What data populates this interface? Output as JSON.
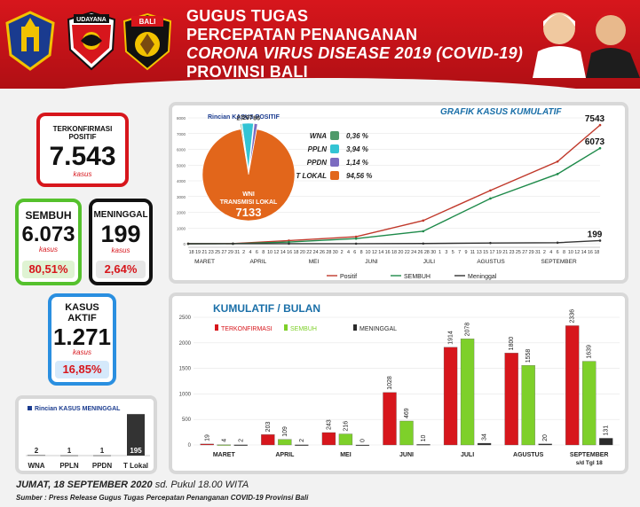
{
  "header": {
    "logo_label_2": "UDAYANA",
    "logo_label_3": "BALI",
    "line1": "GUGUS TUGAS",
    "line2": "PERCEPATAN PENANGANAN",
    "line3": "CORONA VIRUS DISEASE 2019 (COVID-19)",
    "line4": "PROVINSI BALI"
  },
  "cards": {
    "positive": {
      "label": "TERKONFIRMASI POSITIF",
      "value": "7.543",
      "unit": "kasus"
    },
    "recovered": {
      "label": "SEMBUH",
      "value": "6.073",
      "unit": "kasus",
      "percent": "80,51%"
    },
    "deaths": {
      "label": "MENINGGAL",
      "value": "199",
      "unit": "kasus",
      "percent": "2,64%"
    },
    "active": {
      "label": "KASUS AKTIF",
      "value": "1.271",
      "unit": "kasus",
      "percent": "16,85%"
    }
  },
  "colors": {
    "positive": "#d7161c",
    "recovered": "#4caf2a",
    "deaths": "#222222",
    "active": "#2a8fe0"
  },
  "chart_data": [
    {
      "type": "pie",
      "title": "Rincian KASUS POSITIF",
      "slices": [
        {
          "name": "WNA",
          "value": 27,
          "percent": "0,36 %",
          "color": "#4f9a6a"
        },
        {
          "name": "PPLN",
          "value": 297,
          "percent": "3,94 %",
          "color": "#33c4d4"
        },
        {
          "name": "PPDN",
          "value": 86,
          "percent": "1,14 %",
          "color": "#7b6bc0"
        },
        {
          "name": "T LOKAL",
          "value": 7133,
          "percent": "94,56 %",
          "color": "#e2661b"
        }
      ],
      "center_label_line1": "WNI",
      "center_label_line2": "TRANSMISI LOKAL",
      "center_value": "7133"
    },
    {
      "type": "line",
      "title": "GRAFIK KASUS KUMULATIF",
      "ylim": [
        0,
        8000
      ],
      "yticks": [
        "0",
        "1000",
        "2000",
        "3000",
        "4000",
        "5000",
        "6000",
        "7000",
        "8000"
      ],
      "month_labels": [
        "MARET",
        "APRIL",
        "MEI",
        "JUNI",
        "JULI",
        "AGUSTUS",
        "SEPTEMBER"
      ],
      "x_day_labels": [
        "18",
        "19",
        "21",
        "23",
        "25",
        "27",
        "29",
        "31",
        "2",
        "4",
        "6",
        "8",
        "10",
        "12",
        "14",
        "16",
        "18",
        "20",
        "22",
        "24",
        "26",
        "28",
        "30",
        "2",
        "4",
        "6",
        "8",
        "10",
        "12",
        "14",
        "16",
        "18",
        "20",
        "22",
        "24",
        "26",
        "28",
        "30",
        "1",
        "3",
        "5",
        "7",
        "9",
        "11",
        "13",
        "15",
        "17",
        "19",
        "21",
        "23",
        "25",
        "27",
        "29",
        "31",
        "2",
        "4",
        "6",
        "8",
        "10",
        "12",
        "14",
        "16",
        "18"
      ],
      "series": [
        {
          "name": "Positif",
          "color": "#c0392b",
          "points": [
            [
              0,
              1
            ],
            [
              20,
              9
            ],
            [
              45,
              203
            ],
            [
              75,
              446
            ],
            [
              105,
              1474
            ],
            [
              135,
              3388
            ],
            [
              165,
              5226
            ],
            [
              184,
              7543
            ]
          ],
          "end_label": "7543"
        },
        {
          "name": "SEMBUH",
          "color": "#1e8a4a",
          "points": [
            [
              0,
              0
            ],
            [
              20,
              2
            ],
            [
              45,
              111
            ],
            [
              75,
              327
            ],
            [
              105,
              796
            ],
            [
              135,
              2874
            ],
            [
              165,
              4432
            ],
            [
              184,
              6073
            ]
          ],
          "end_label": "6073"
        },
        {
          "name": "Meninggal",
          "color": "#333333",
          "points": [
            [
              0,
              0
            ],
            [
              20,
              2
            ],
            [
              45,
              4
            ],
            [
              75,
              4
            ],
            [
              105,
              14
            ],
            [
              135,
              48
            ],
            [
              165,
              68
            ],
            [
              184,
              199
            ]
          ],
          "end_label": "199"
        }
      ]
    },
    {
      "type": "bar",
      "title": "KUMULATIF / BULAN",
      "ylim": [
        0,
        2500
      ],
      "yticks": [
        "0",
        "500",
        "1000",
        "1500",
        "2000",
        "2500"
      ],
      "categories": [
        "MARET",
        "APRIL",
        "MEI",
        "JUNI",
        "JULI",
        "AGUSTUS",
        "SEPTEMBER"
      ],
      "category_note": "s/d Tgl 18",
      "series": [
        {
          "name": "TERKONFIRMASI",
          "color": "#d7161c",
          "values": [
            19,
            203,
            243,
            1028,
            1914,
            1800,
            2336
          ]
        },
        {
          "name": "SEMBUH",
          "color": "#7ed02a",
          "values": [
            4,
            109,
            216,
            469,
            2078,
            1558,
            1639
          ]
        },
        {
          "name": "MENINGGAL",
          "color": "#2b2b2b",
          "values": [
            2,
            2,
            0,
            10,
            34,
            20,
            131
          ]
        }
      ]
    },
    {
      "type": "bar",
      "title": "Rincian KASUS MENINGGAL",
      "categories": [
        "WNA",
        "PPLN",
        "PPDN",
        "T Lokal"
      ],
      "values": [
        2,
        1,
        1,
        195
      ],
      "ylim": [
        0,
        200
      ]
    }
  ],
  "footer": {
    "date_bold": "JUMAT, 18 SEPTEMBER 2020",
    "date_rest": " sd. Pukul 18.00 WITA",
    "source": "Sumber :  Press Release Gugus Tugas Percepatan Penanganan COVID-19 Provinsi Bali"
  }
}
